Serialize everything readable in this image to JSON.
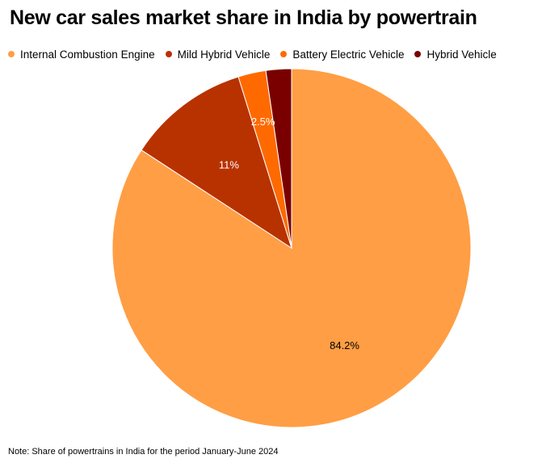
{
  "chart_data": {
    "type": "pie",
    "title": "New car sales market share in India by powertrain",
    "legend_position": "top",
    "slices": [
      {
        "label": "Internal Combustion Engine",
        "value": 84.2,
        "display": "84.2%",
        "color": "#FF9E44"
      },
      {
        "label": "Mild Hybrid Vehicle",
        "value": 11,
        "display": "11%",
        "color": "#B83200"
      },
      {
        "label": "Battery Electric Vehicle",
        "value": 2.5,
        "display": "2.5%",
        "color": "#FF6A00"
      },
      {
        "label": "Hybrid Vehicle",
        "value": 2.3,
        "display": "",
        "color": "#7A0000"
      }
    ]
  },
  "note": "Note: Share of powertrains in India for the period January-June 2024"
}
